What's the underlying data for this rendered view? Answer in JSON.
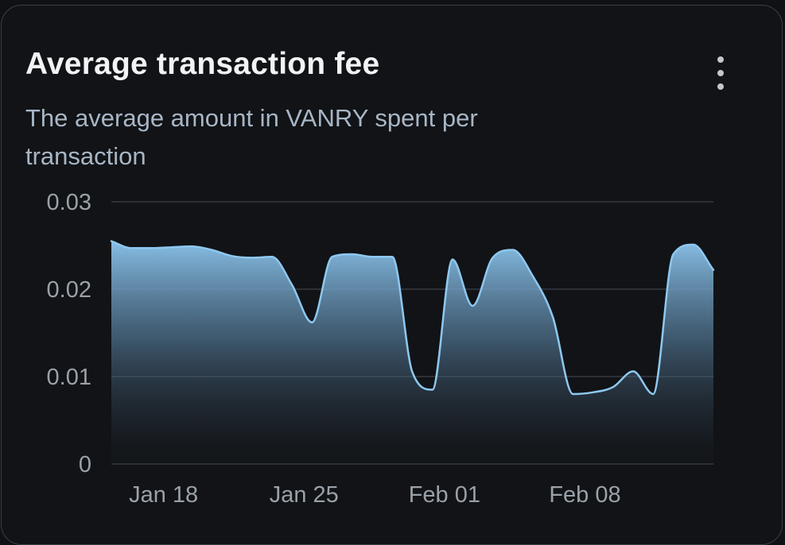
{
  "card": {
    "title": "Average transaction fee",
    "subtitle": "The average amount in VANRY spent per transaction",
    "menu_icon": "more-vertical-icon"
  },
  "colors": {
    "line": "#8ec8f0",
    "area_top": "#8ec8f0",
    "grid": "#2c3036",
    "tick_text": "#9aa1a9"
  },
  "chart_data": {
    "type": "area",
    "title": "Average transaction fee",
    "subtitle": "The average amount in VANRY spent per transaction",
    "xlabel": "",
    "ylabel": "",
    "x_tick_labels": [
      "Jan 18",
      "Jan 25",
      "Feb 01",
      "Feb 08"
    ],
    "y_tick_labels": [
      "0",
      "0.01",
      "0.02",
      "0.03"
    ],
    "yticks": [
      0,
      0.01,
      0.02,
      0.03
    ],
    "ylim": [
      0,
      0.03
    ],
    "grid": true,
    "legend": "none",
    "x": [
      "Jan 15",
      "Jan 16",
      "Jan 17",
      "Jan 18",
      "Jan 19",
      "Jan 20",
      "Jan 21",
      "Jan 22",
      "Jan 23",
      "Jan 24",
      "Jan 25",
      "Jan 26",
      "Jan 27",
      "Jan 28",
      "Jan 29",
      "Jan 30",
      "Jan 31",
      "Feb 01",
      "Feb 02",
      "Feb 03",
      "Feb 04",
      "Feb 05",
      "Feb 06",
      "Feb 07",
      "Feb 08",
      "Feb 09",
      "Feb 10",
      "Feb 11",
      "Feb 12",
      "Feb 13",
      "Feb 14"
    ],
    "x_ticks": [
      {
        "label": "Jan 18",
        "index": 2.6
      },
      {
        "label": "Jan 25",
        "index": 9.6
      },
      {
        "label": "Feb 01",
        "index": 16.6
      },
      {
        "label": "Feb 08",
        "index": 23.6
      }
    ],
    "series": [
      {
        "values": [
          0.0255,
          0.0247,
          0.0247,
          0.0248,
          0.0249,
          0.0245,
          0.0238,
          0.0236,
          0.0237,
          0.0205,
          0.0162,
          0.0237,
          0.024,
          0.0237,
          0.0237,
          0.0105,
          0.0085,
          0.0234,
          0.0181,
          0.0236,
          0.0245,
          0.0215,
          0.0168,
          0.008,
          0.0082,
          0.0088,
          0.0106,
          0.008,
          0.024,
          0.0251,
          0.0222
        ]
      }
    ]
  }
}
